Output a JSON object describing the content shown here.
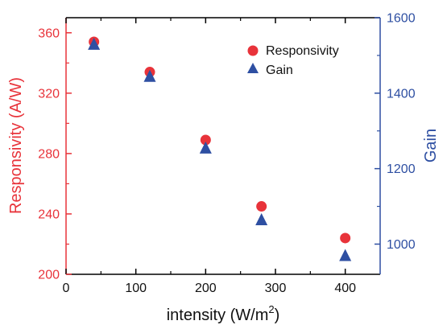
{
  "chart_data": {
    "type": "scatter",
    "xlabel": "intensity (W/m",
    "xlabel_sup": "2",
    "xlabel_close": ")",
    "ylabel_left": "Responsivity (A/W)",
    "ylabel_right": "Gain",
    "xlim": [
      0,
      450
    ],
    "ylim_left": [
      200,
      370
    ],
    "ylim_right": [
      920,
      1600
    ],
    "x_ticks": [
      "0",
      "100",
      "200",
      "300",
      "400"
    ],
    "y_left_ticks": [
      "200",
      "240",
      "280",
      "320",
      "360"
    ],
    "y_right_ticks": [
      "1000",
      "1200",
      "1400",
      "1600"
    ],
    "legend_position": "top-right",
    "series": [
      {
        "name": "Responsivity",
        "marker": "circle",
        "color": "#e8333a",
        "axis": "left",
        "x": [
          40,
          120,
          200,
          280,
          400
        ],
        "y": [
          354,
          334,
          289,
          245,
          224
        ]
      },
      {
        "name": "Gain",
        "marker": "triangle",
        "color": "#2e4fa2",
        "axis": "right",
        "x": [
          40,
          120,
          200,
          280,
          400
        ],
        "y": [
          1530,
          1445,
          1255,
          1065,
          970
        ]
      }
    ],
    "colors": {
      "left_axis": "#e8333a",
      "right_axis": "#2e4fa2",
      "frame": "#000000"
    }
  }
}
